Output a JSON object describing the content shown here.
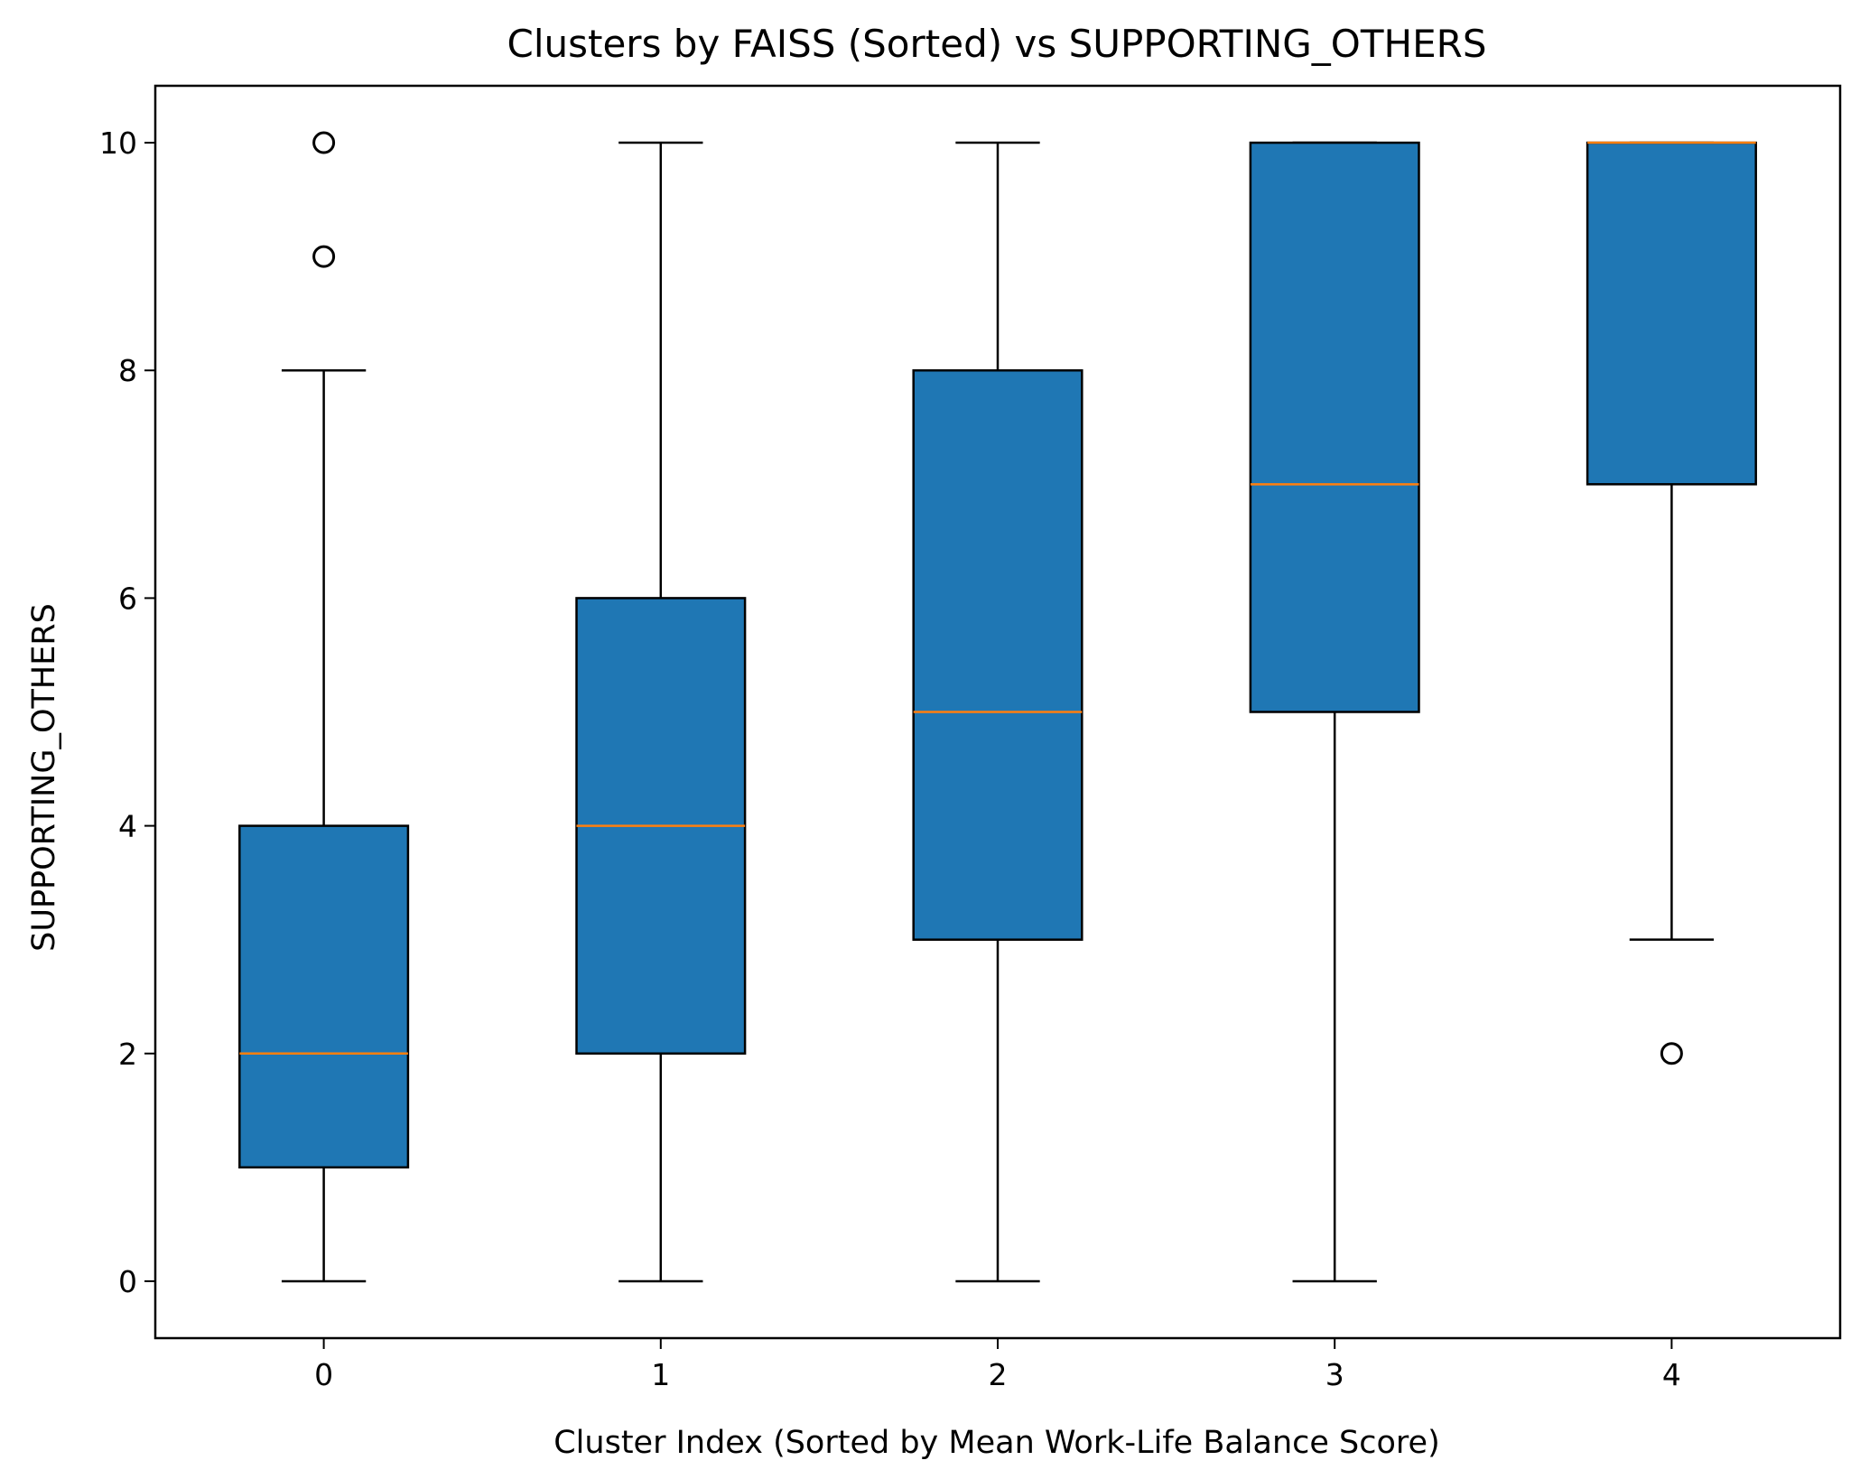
{
  "chart_data": {
    "type": "box",
    "title": "Clusters by FAISS (Sorted) vs SUPPORTING_OTHERS",
    "xlabel": "Cluster Index (Sorted by Mean Work-Life Balance Score)",
    "ylabel": "SUPPORTING_OTHERS",
    "categories": [
      "0",
      "1",
      "2",
      "3",
      "4"
    ],
    "ylim": [
      -0.5,
      10.5
    ],
    "yticks": [
      0,
      2,
      4,
      6,
      8,
      10
    ],
    "grid": false,
    "box_color": "#1f77b4",
    "median_color": "#ff7f0e",
    "boxes": [
      {
        "category": "0",
        "whislo": 0,
        "q1": 1,
        "median": 2,
        "q3": 4,
        "whishi": 8,
        "fliers": [
          9,
          10
        ]
      },
      {
        "category": "1",
        "whislo": 0,
        "q1": 2,
        "median": 4,
        "q3": 6,
        "whishi": 10,
        "fliers": []
      },
      {
        "category": "2",
        "whislo": 0,
        "q1": 3,
        "median": 5,
        "q3": 8,
        "whishi": 10,
        "fliers": []
      },
      {
        "category": "3",
        "whislo": 0,
        "q1": 5,
        "median": 7,
        "q3": 10,
        "whishi": 10,
        "fliers": []
      },
      {
        "category": "4",
        "whislo": 3,
        "q1": 7,
        "median": 10,
        "q3": 10,
        "whishi": 10,
        "fliers": [
          2
        ]
      }
    ]
  }
}
